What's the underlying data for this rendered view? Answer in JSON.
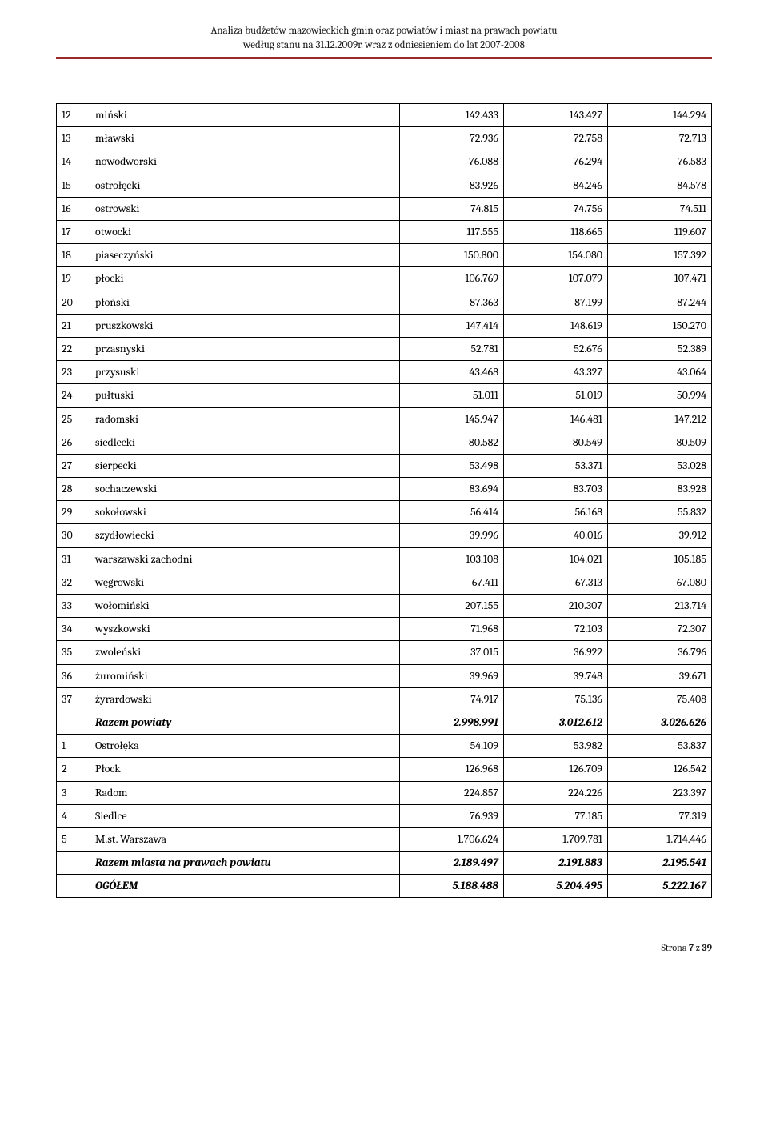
{
  "header": {
    "line1": "Analiza budżetów mazowieckich gmin oraz powiatów i miast na prawach powiatu",
    "line2": "według stanu na 31.12.2009r. wraz z odniesieniem do lat 2007-2008"
  },
  "colors": {
    "rule": "#9a2a2a",
    "border": "#000000",
    "text": "#000000",
    "background": "#ffffff"
  },
  "rows": [
    {
      "idx": "12",
      "name": "miński",
      "v1": "142.433",
      "v2": "143.427",
      "v3": "144.294"
    },
    {
      "idx": "13",
      "name": "mławski",
      "v1": "72.936",
      "v2": "72.758",
      "v3": "72.713"
    },
    {
      "idx": "14",
      "name": "nowodworski",
      "v1": "76.088",
      "v2": "76.294",
      "v3": "76.583"
    },
    {
      "idx": "15",
      "name": "ostrołęcki",
      "v1": "83.926",
      "v2": "84.246",
      "v3": "84.578"
    },
    {
      "idx": "16",
      "name": "ostrowski",
      "v1": "74.815",
      "v2": "74.756",
      "v3": "74.511"
    },
    {
      "idx": "17",
      "name": "otwocki",
      "v1": "117.555",
      "v2": "118.665",
      "v3": "119.607"
    },
    {
      "idx": "18",
      "name": "piaseczyński",
      "v1": "150.800",
      "v2": "154.080",
      "v3": "157.392"
    },
    {
      "idx": "19",
      "name": "płocki",
      "v1": "106.769",
      "v2": "107.079",
      "v3": "107.471"
    },
    {
      "idx": "20",
      "name": "płoński",
      "v1": "87.363",
      "v2": "87.199",
      "v3": "87.244"
    },
    {
      "idx": "21",
      "name": "pruszkowski",
      "v1": "147.414",
      "v2": "148.619",
      "v3": "150.270"
    },
    {
      "idx": "22",
      "name": "przasnyski",
      "v1": "52.781",
      "v2": "52.676",
      "v3": "52.389"
    },
    {
      "idx": "23",
      "name": "przysuski",
      "v1": "43.468",
      "v2": "43.327",
      "v3": "43.064"
    },
    {
      "idx": "24",
      "name": "pułtuski",
      "v1": "51.011",
      "v2": "51.019",
      "v3": "50.994"
    },
    {
      "idx": "25",
      "name": "radomski",
      "v1": "145.947",
      "v2": "146.481",
      "v3": "147.212"
    },
    {
      "idx": "26",
      "name": "siedlecki",
      "v1": "80.582",
      "v2": "80.549",
      "v3": "80.509"
    },
    {
      "idx": "27",
      "name": "sierpecki",
      "v1": "53.498",
      "v2": "53.371",
      "v3": "53.028"
    },
    {
      "idx": "28",
      "name": "sochaczewski",
      "v1": "83.694",
      "v2": "83.703",
      "v3": "83.928"
    },
    {
      "idx": "29",
      "name": "sokołowski",
      "v1": "56.414",
      "v2": "56.168",
      "v3": "55.832"
    },
    {
      "idx": "30",
      "name": "szydłowiecki",
      "v1": "39.996",
      "v2": "40.016",
      "v3": "39.912"
    },
    {
      "idx": "31",
      "name": "warszawski zachodni",
      "v1": "103.108",
      "v2": "104.021",
      "v3": "105.185"
    },
    {
      "idx": "32",
      "name": "węgrowski",
      "v1": "67.411",
      "v2": "67.313",
      "v3": "67.080"
    },
    {
      "idx": "33",
      "name": "wołomiński",
      "v1": "207.155",
      "v2": "210.307",
      "v3": "213.714"
    },
    {
      "idx": "34",
      "name": "wyszkowski",
      "v1": "71.968",
      "v2": "72.103",
      "v3": "72.307"
    },
    {
      "idx": "35",
      "name": "zwoleński",
      "v1": "37.015",
      "v2": "36.922",
      "v3": "36.796"
    },
    {
      "idx": "36",
      "name": "żuromiński",
      "v1": "39.969",
      "v2": "39.748",
      "v3": "39.671"
    },
    {
      "idx": "37",
      "name": "żyrardowski",
      "v1": "74.917",
      "v2": "75.136",
      "v3": "75.408"
    },
    {
      "idx": "",
      "name": "Razem powiaty",
      "v1": "2.998.991",
      "v2": "3.012.612",
      "v3": "3.026.626",
      "summary": true
    },
    {
      "idx": "1",
      "name": "Ostrołęka",
      "v1": "54.109",
      "v2": "53.982",
      "v3": "53.837"
    },
    {
      "idx": "2",
      "name": "Płock",
      "v1": "126.968",
      "v2": "126.709",
      "v3": "126.542"
    },
    {
      "idx": "3",
      "name": "Radom",
      "v1": "224.857",
      "v2": "224.226",
      "v3": "223.397"
    },
    {
      "idx": "4",
      "name": "Siedlce",
      "v1": "76.939",
      "v2": "77.185",
      "v3": "77.319"
    },
    {
      "idx": "5",
      "name": "M.st. Warszawa",
      "v1": "1.706.624",
      "v2": "1.709.781",
      "v3": "1.714.446"
    },
    {
      "idx": "",
      "name": "Razem miasta na prawach powiatu",
      "v1": "2.189.497",
      "v2": "2.191.883",
      "v3": "2.195.541",
      "summary": true
    },
    {
      "idx": "",
      "name": "OGÓŁEM",
      "v1": "5.188.488",
      "v2": "5.204.495",
      "v3": "5.222.167",
      "summary": true
    }
  ],
  "footer": {
    "prefix": "Strona ",
    "page": "7",
    "mid": " z ",
    "total": "39"
  }
}
